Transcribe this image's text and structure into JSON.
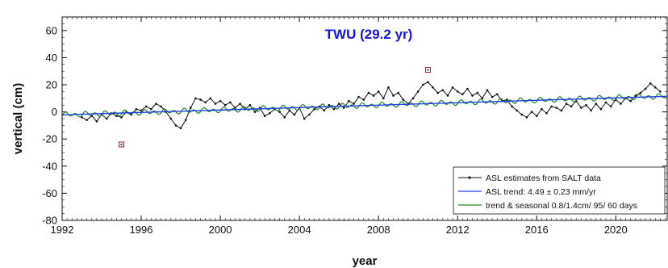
{
  "chart_data": {
    "type": "line",
    "title": "TWU (29.2 yr)",
    "title_color": "#1414e6",
    "xlabel": "year",
    "ylabel": "vertical (cm)",
    "xlim": [
      1992,
      2022.6
    ],
    "ylim": [
      -80,
      70
    ],
    "xticks": [
      1992,
      1996,
      2000,
      2004,
      2008,
      2012,
      2016,
      2020
    ],
    "yticks": [
      -80,
      -60,
      -40,
      -20,
      0,
      20,
      40,
      60
    ],
    "grid": false,
    "legend_position": "bottom-right",
    "series": [
      {
        "name": "ASL estimates from SALT data",
        "color": "#111111",
        "style": "line-with-points",
        "x": [
          1993.0,
          1993.25,
          1993.5,
          1993.75,
          1994.0,
          1994.25,
          1994.5,
          1994.75,
          1995.0,
          1995.25,
          1995.5,
          1995.75,
          1996.0,
          1996.25,
          1996.5,
          1996.75,
          1997.0,
          1997.25,
          1997.5,
          1997.75,
          1998.0,
          1998.25,
          1998.5,
          1998.75,
          1999.0,
          1999.25,
          1999.5,
          1999.75,
          2000.0,
          2000.25,
          2000.5,
          2000.75,
          2001.0,
          2001.25,
          2001.5,
          2001.75,
          2002.0,
          2002.25,
          2002.5,
          2002.75,
          2003.0,
          2003.25,
          2003.5,
          2003.75,
          2004.0,
          2004.25,
          2004.5,
          2004.75,
          2005.0,
          2005.25,
          2005.5,
          2005.75,
          2006.0,
          2006.25,
          2006.5,
          2006.75,
          2007.0,
          2007.25,
          2007.5,
          2007.75,
          2008.0,
          2008.25,
          2008.5,
          2008.75,
          2009.0,
          2009.25,
          2009.5,
          2009.75,
          2010.0,
          2010.25,
          2010.5,
          2010.75,
          2011.0,
          2011.25,
          2011.5,
          2011.75,
          2012.0,
          2012.25,
          2012.5,
          2012.75,
          2013.0,
          2013.25,
          2013.5,
          2013.75,
          2014.0,
          2014.25,
          2014.5,
          2014.75,
          2015.0,
          2015.25,
          2015.5,
          2015.75,
          2016.0,
          2016.25,
          2016.5,
          2016.75,
          2017.0,
          2017.25,
          2017.5,
          2017.75,
          2018.0,
          2018.25,
          2018.5,
          2018.75,
          2019.0,
          2019.25,
          2019.5,
          2019.75,
          2020.0,
          2020.25,
          2020.5,
          2020.75,
          2021.0,
          2021.25,
          2021.5,
          2021.75,
          2022.0,
          2022.25
        ],
        "y": [
          -4,
          -6,
          -3,
          -7,
          -2,
          -5,
          -1,
          -3,
          -4,
          0,
          -2,
          2,
          1,
          4,
          2,
          6,
          4,
          0,
          -5,
          -10,
          -12,
          -6,
          3,
          10,
          9,
          7,
          10,
          6,
          8,
          5,
          7,
          3,
          6,
          2,
          5,
          0,
          3,
          -3,
          -1,
          2,
          0,
          -4,
          1,
          -2,
          3,
          -5,
          -2,
          2,
          4,
          1,
          5,
          2,
          6,
          3,
          8,
          6,
          11,
          9,
          14,
          12,
          15,
          10,
          18,
          12,
          14,
          9,
          6,
          10,
          15,
          20,
          22,
          18,
          14,
          16,
          12,
          18,
          15,
          13,
          17,
          12,
          14,
          10,
          16,
          11,
          13,
          8,
          9,
          4,
          1,
          -2,
          -4,
          0,
          -3,
          2,
          -1,
          4,
          3,
          1,
          6,
          4,
          8,
          3,
          5,
          1,
          6,
          2,
          7,
          4,
          9,
          6,
          10,
          8,
          12,
          14,
          17,
          21,
          18,
          15
        ]
      },
      {
        "name": "ASL trend: 4.49 ± 0.23 mm/yr",
        "color": "#1f3fe6",
        "style": "line",
        "x": [
          1992,
          2022.6
        ],
        "y": [
          -2.2,
          11.5
        ]
      },
      {
        "name": "trend & seasonal 0.8/1.4cm/ 95/ 60 days",
        "color": "#1a8a1a",
        "style": "line",
        "trend_rate_cm_per_yr": 0.449,
        "annual_amplitude_cm": 0.8,
        "semiannual_amplitude_cm": 1.4,
        "annual_phase_days": 95,
        "semiannual_phase_days": 60
      }
    ],
    "outliers": {
      "color": "#b01818",
      "x": [
        1995.0,
        2010.5
      ],
      "y": [
        -24,
        31
      ]
    }
  }
}
